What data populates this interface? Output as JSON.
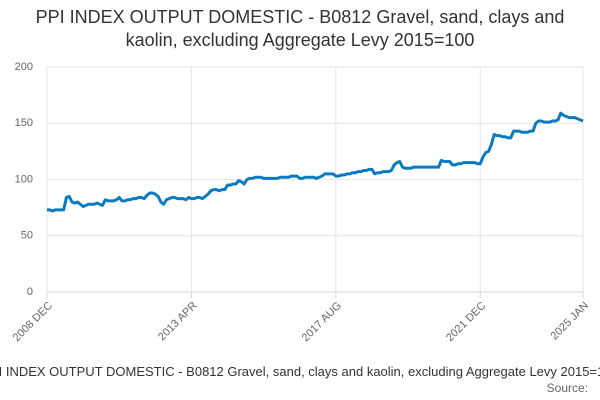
{
  "chart_data": {
    "type": "line",
    "title": "PPI INDEX OUTPUT DOMESTIC - B0812 Gravel, sand, clays and kaolin, excluding Aggregate Levy 2015=100",
    "source": "Source:",
    "categories": [
      "2008 DEC",
      null,
      null,
      null,
      null,
      null,
      null,
      null,
      null,
      null,
      null,
      null,
      null,
      null,
      null,
      null,
      null,
      null,
      null,
      null,
      null,
      null,
      null,
      null,
      null,
      null,
      null,
      null,
      null,
      null,
      null,
      null,
      null,
      null,
      null,
      null,
      null,
      null,
      null,
      null,
      null,
      null,
      null,
      null,
      null,
      null,
      null,
      null,
      null,
      null,
      null,
      null,
      "2013 APR",
      null,
      null,
      null,
      null,
      null,
      null,
      null,
      null,
      null,
      null,
      null,
      null,
      null,
      null,
      null,
      null,
      null,
      null,
      null,
      null,
      null,
      null,
      null,
      null,
      null,
      null,
      null,
      null,
      null,
      null,
      null,
      null,
      null,
      null,
      null,
      null,
      null,
      null,
      null,
      null,
      null,
      null,
      null,
      null,
      null,
      null,
      null,
      null,
      null,
      null,
      null,
      "2017 AUG",
      null,
      null,
      null,
      null,
      null,
      null,
      null,
      null,
      null,
      null,
      null,
      null,
      null,
      null,
      null,
      null,
      null,
      null,
      null,
      null,
      null,
      null,
      null,
      null,
      null,
      null,
      null,
      null,
      null,
      null,
      null,
      null,
      null,
      null,
      null,
      null,
      null,
      null,
      null,
      null,
      null,
      null,
      null,
      null,
      null,
      null,
      null,
      null,
      null,
      null,
      null,
      "2021 DEC",
      null,
      null,
      null,
      null,
      null,
      null,
      null,
      null,
      null,
      null,
      null,
      null,
      null,
      null,
      null,
      null,
      null,
      null,
      null,
      null,
      null,
      null,
      null,
      null,
      null,
      null,
      null,
      null,
      null,
      null,
      null,
      null,
      null,
      null,
      null,
      null,
      "2025 JAN"
    ],
    "series": [
      {
        "color": "#0a7bc1",
        "values": [
          73,
          73,
          72,
          73,
          73,
          73,
          73,
          84,
          85,
          80,
          79,
          80,
          78,
          76,
          77,
          78,
          78,
          78,
          79,
          78,
          77,
          82,
          81,
          81,
          81,
          82,
          84,
          81,
          81,
          82,
          82,
          83,
          83,
          84,
          84,
          83,
          86,
          88,
          88,
          87,
          85,
          80,
          78,
          82,
          83,
          84,
          84,
          83,
          83,
          83,
          82,
          84,
          83,
          83,
          84,
          84,
          83,
          85,
          87,
          90,
          91,
          91,
          90,
          91,
          91,
          95,
          95,
          96,
          96,
          99,
          98,
          96,
          100,
          101,
          101,
          102,
          102,
          102,
          101,
          101,
          101,
          101,
          101,
          101,
          102,
          102,
          102,
          102,
          103,
          103,
          103,
          101,
          101,
          102,
          102,
          102,
          102,
          101,
          102,
          103,
          105,
          105,
          105,
          105,
          103,
          103,
          104,
          104,
          105,
          105,
          106,
          106,
          107,
          107,
          108,
          108,
          109,
          109,
          105,
          106,
          106,
          107,
          107,
          107,
          108,
          113,
          115,
          116,
          111,
          110,
          110,
          110,
          111,
          111,
          111,
          111,
          111,
          111,
          111,
          111,
          111,
          111,
          117,
          116,
          116,
          116,
          113,
          113,
          114,
          114,
          115,
          115,
          115,
          115,
          115,
          114,
          114,
          120,
          124,
          125,
          131,
          140,
          139,
          139,
          138,
          138,
          137,
          137,
          143,
          143,
          143,
          142,
          142,
          142,
          143,
          143,
          150,
          152,
          152,
          151,
          151,
          151,
          152,
          152,
          153,
          159,
          157,
          156,
          155,
          155,
          155,
          154,
          153,
          152
        ]
      }
    ],
    "ylim": [
      0,
      200
    ],
    "yticks": [
      0,
      50,
      100,
      150,
      200
    ],
    "grid": true
  }
}
